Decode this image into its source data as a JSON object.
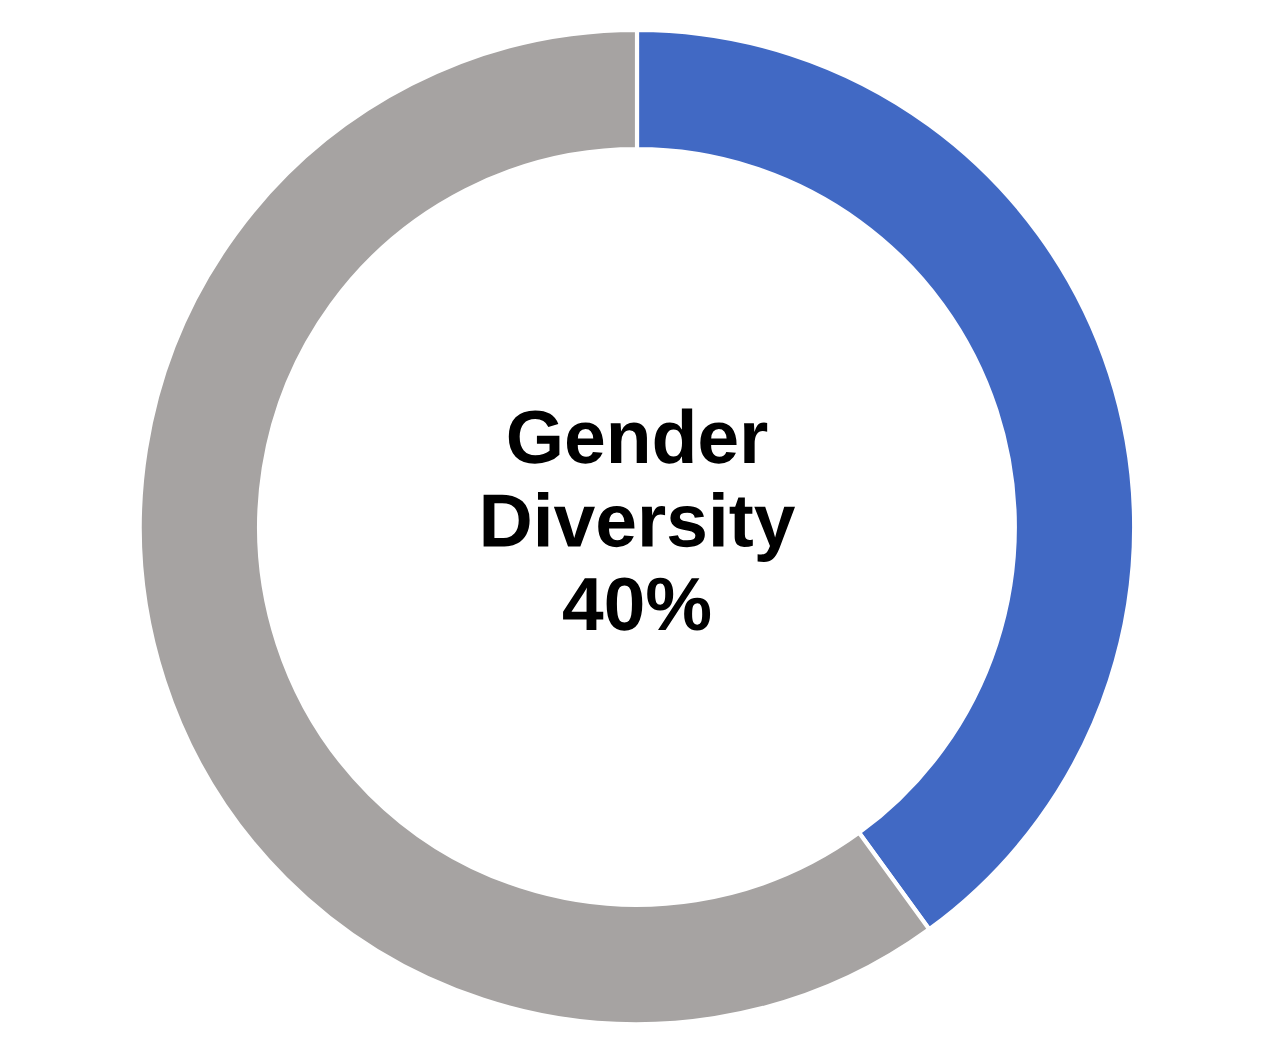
{
  "chart_data": {
    "type": "donut",
    "categories": [
      null,
      null
    ],
    "values": [
      40,
      60
    ],
    "colors": [
      "#4169c4",
      "#a6a3a2"
    ],
    "annotations": [
      "Gender\nDiversity\n40%"
    ],
    "legend": false
  }
}
